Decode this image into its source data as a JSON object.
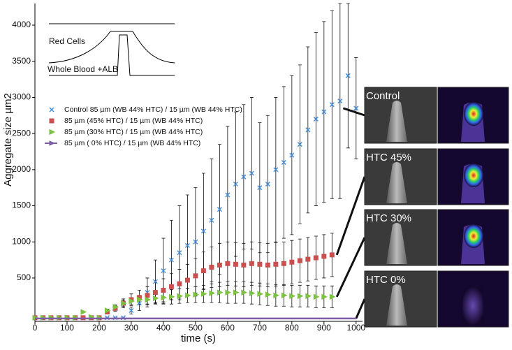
{
  "chart_data": {
    "type": "line",
    "x_label": "time (s)",
    "y_label": "Aggregate size µm2",
    "xlim": [
      0,
      1020
    ],
    "ylim": [
      -100,
      4300
    ],
    "xticks": [
      0,
      100,
      200,
      300,
      400,
      500,
      600,
      700,
      800,
      900,
      1000
    ],
    "yticks": [
      500,
      1000,
      1500,
      2000,
      2500,
      3000,
      3500,
      4000
    ],
    "x": [
      0,
      25,
      50,
      75,
      100,
      125,
      150,
      175,
      200,
      225,
      250,
      275,
      300,
      325,
      350,
      375,
      400,
      425,
      450,
      475,
      500,
      525,
      550,
      575,
      600,
      625,
      650,
      675,
      700,
      725,
      750,
      775,
      800,
      825,
      850,
      875,
      900,
      925,
      950,
      975,
      1000
    ],
    "series": [
      {
        "name": "Control 85 µm (WB 44% HTC) / 15 µm (WB 44% HTC)",
        "color": "#4a90d9",
        "marker": "x",
        "values": [
          -50,
          -50,
          -50,
          -50,
          -50,
          -50,
          -50,
          -50,
          -50,
          -50,
          -50,
          -50,
          50,
          150,
          300,
          450,
          600,
          750,
          850,
          950,
          1000,
          1150,
          1300,
          1450,
          1650,
          1800,
          1900,
          1950,
          1750,
          1800,
          2000,
          2100,
          2200,
          2350,
          2550,
          2700,
          2800,
          2900,
          2950,
          3300,
          2850
        ],
        "errors": [
          0,
          0,
          0,
          0,
          0,
          0,
          0,
          0,
          0,
          0,
          0,
          0,
          50,
          100,
          200,
          300,
          450,
          550,
          650,
          700,
          750,
          800,
          850,
          900,
          950,
          1000,
          1000,
          1050,
          900,
          950,
          1000,
          1050,
          1100,
          1100,
          1150,
          1200,
          1250,
          1300,
          1350,
          1000,
          700
        ]
      },
      {
        "name": "85 µm (45% HTC) / 15 µm (WB 44% HTC)",
        "color": "#c9504f",
        "marker": "square",
        "values": [
          -50,
          -50,
          -50,
          -50,
          -50,
          -50,
          -50,
          -50,
          -50,
          30,
          80,
          150,
          200,
          230,
          260,
          300,
          330,
          380,
          420,
          470,
          530,
          600,
          650,
          680,
          700,
          690,
          680,
          700,
          690,
          680,
          690,
          700,
          720,
          740,
          760,
          780,
          800,
          820,
          null,
          null,
          null
        ],
        "errors": [
          0,
          0,
          0,
          0,
          0,
          0,
          0,
          0,
          0,
          20,
          40,
          60,
          80,
          100,
          120,
          140,
          160,
          180,
          200,
          220,
          240,
          260,
          280,
          300,
          300,
          300,
          300,
          300,
          300,
          300,
          300,
          300,
          300,
          300,
          300,
          300,
          300,
          300,
          null,
          null,
          null
        ]
      },
      {
        "name": "85 µm (30% HTC) / 15 µm (WB 44% HTC)",
        "color": "#7dc242",
        "marker": "triangle",
        "values": [
          -50,
          -50,
          -50,
          -50,
          -50,
          -50,
          30,
          -40,
          -50,
          50,
          100,
          150,
          180,
          200,
          200,
          220,
          230,
          240,
          250,
          260,
          270,
          280,
          290,
          300,
          300,
          300,
          300,
          290,
          280,
          270,
          260,
          260,
          250,
          250,
          250,
          240,
          240,
          240,
          null,
          null,
          null
        ],
        "errors": [
          0,
          0,
          0,
          0,
          0,
          0,
          0,
          0,
          0,
          20,
          30,
          40,
          50,
          60,
          70,
          80,
          90,
          100,
          100,
          100,
          110,
          120,
          130,
          140,
          150,
          150,
          150,
          150,
          150,
          150,
          150,
          150,
          150,
          150,
          150,
          150,
          150,
          150,
          null,
          null,
          null
        ]
      },
      {
        "name": "85 µm ( 0% HTC) / 15 µm (WB 44% HTC)",
        "color": "#7b5ea7",
        "marker": "arrow",
        "values": [
          -60,
          -60,
          -60,
          -60,
          -60,
          -60,
          -60,
          -60,
          -60,
          -60,
          -60,
          -60,
          -60,
          -60,
          -60,
          -60,
          -60,
          -60,
          -60,
          -60,
          -60,
          -60,
          -60,
          -60,
          -60,
          -60,
          -60,
          -60,
          -60,
          -60,
          -60,
          -60,
          -60,
          -60,
          -60,
          -60,
          -60,
          -60,
          -60,
          -60,
          -60
        ]
      }
    ],
    "schematic_labels": [
      "Red Cells",
      "Whole Blood +ALB"
    ],
    "insets": [
      "Control",
      "HTC 45%",
      "HTC 30%",
      "HTC 0%"
    ]
  }
}
